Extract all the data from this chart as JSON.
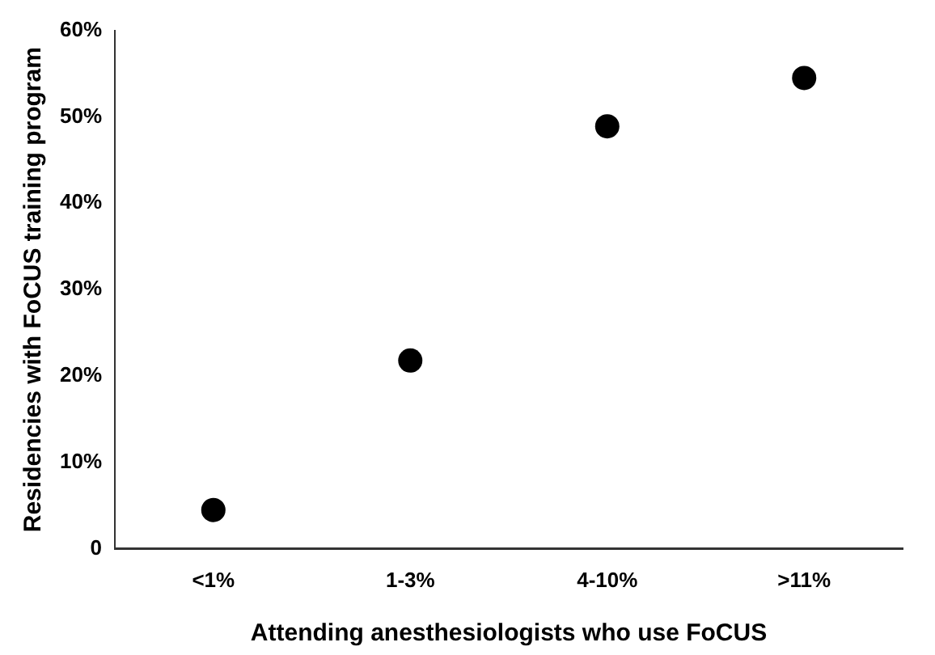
{
  "chart_data": {
    "type": "scatter",
    "xlabel": "Attending anesthesiologists who use FoCUS",
    "ylabel": "Residencies with FoCUS training program",
    "categories": [
      "<1%",
      "1-3%",
      "4-10%",
      ">11%"
    ],
    "series": [
      {
        "color": "#000000",
        "values": [
          4.5,
          21.8,
          48.9,
          54.5
        ]
      }
    ],
    "ylim": [
      0,
      60
    ],
    "yticks": [
      0,
      {
        "value": 10,
        "label": "10%"
      },
      {
        "value": 20,
        "label": "20%"
      },
      {
        "value": 30,
        "label": "30%"
      },
      {
        "value": 40,
        "label": "40%"
      },
      {
        "value": 50,
        "label": "50%"
      },
      {
        "value": 60,
        "label": "60%"
      }
    ],
    "grid": false,
    "legend": false,
    "marker": "circle"
  }
}
